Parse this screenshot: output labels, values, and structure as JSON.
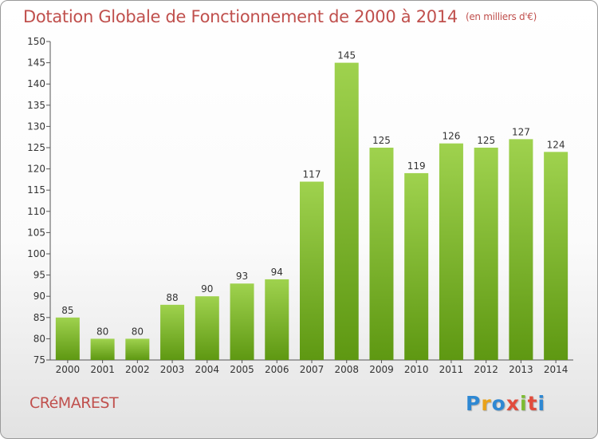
{
  "header": {
    "title": "Dotation Globale de Fonctionnement de 2000 à 2014",
    "unit": "(en milliers d'€)"
  },
  "footer": {
    "commune": "CRéMAREST",
    "logo_letters": [
      "P",
      "r",
      "o",
      "x",
      "i",
      "t",
      "i"
    ]
  },
  "chart_data": {
    "type": "bar",
    "title": "Dotation Globale de Fonctionnement de 2000 à 2014",
    "subtitle": "(en milliers d'€)",
    "xlabel": "",
    "ylabel": "",
    "categories": [
      "2000",
      "2001",
      "2002",
      "2003",
      "2004",
      "2005",
      "2006",
      "2007",
      "2008",
      "2009",
      "2010",
      "2011",
      "2012",
      "2013",
      "2014"
    ],
    "values": [
      85,
      80,
      80,
      88,
      90,
      93,
      94,
      117,
      145,
      125,
      119,
      126,
      125,
      127,
      124
    ],
    "ylim": [
      75,
      150
    ],
    "yticks": [
      75,
      80,
      85,
      90,
      95,
      100,
      105,
      110,
      115,
      120,
      125,
      130,
      135,
      140,
      145,
      150
    ],
    "grid": false,
    "colors": {
      "bar_light": "#9fd24e",
      "bar_dark": "#5e9812",
      "title": "#c0504d",
      "axis": "#555555"
    }
  }
}
